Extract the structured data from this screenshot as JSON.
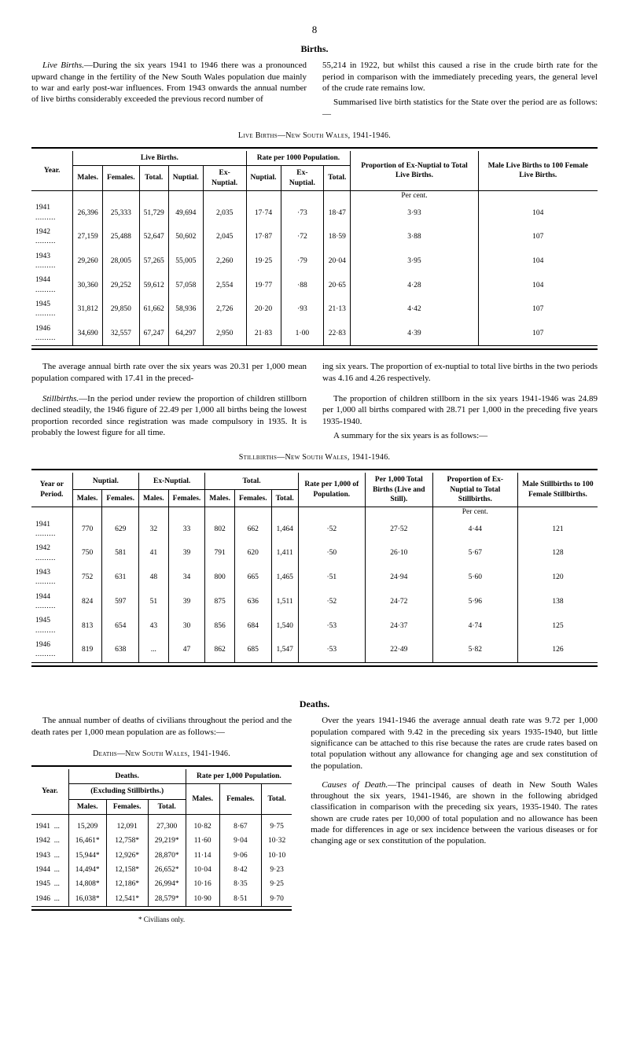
{
  "pageNumber": "8",
  "sections": {
    "births": {
      "heading": "Births.",
      "paraLeft1a": "Live Births.",
      "paraLeft1b": "—During the six years 1941 to 1946 there was a pronounced upward change in the fertility of the New South Wales population due mainly to war and early post-war influences. From 1943 onwards the annual number of live births considerably exceeded the previous record number of",
      "paraRight1": "55,214 in 1922, but whilst this caused a rise in the crude birth rate for the period in comparison with the immediately preceding years, the general level of the crude rate remains low.",
      "paraRight2": "Summarised live birth statistics for the State over the period are as follows:—"
    },
    "table1": {
      "caption": "Live Births—New South Wales, 1941-1946.",
      "groupHeaders": {
        "year": "Year.",
        "liveBirths": "Live Births.",
        "ratePer1000": "Rate per 1000 Population.",
        "proportion": "Proportion of Ex-Nuptial to Total Live Births.",
        "maleLive": "Male Live Births to 100 Female Live Births."
      },
      "subHeaders": {
        "males": "Males.",
        "females": "Females.",
        "total": "Total.",
        "nuptial": "Nuptial.",
        "exNuptial": "Ex-Nuptial.",
        "nuptial2": "Nuptial.",
        "exNuptial2": "Ex-Nuptial.",
        "total2": "Total."
      },
      "perCent": "Per cent.",
      "rows": [
        {
          "year": "1941",
          "males": "26,396",
          "females": "25,333",
          "total": "51,729",
          "nuptial": "49,694",
          "exNuptial": "2,035",
          "rNuptial": "17·74",
          "rExNuptial": "·73",
          "rTotal": "18·47",
          "prop": "3·93",
          "ratio": "104"
        },
        {
          "year": "1942",
          "males": "27,159",
          "females": "25,488",
          "total": "52,647",
          "nuptial": "50,602",
          "exNuptial": "2,045",
          "rNuptial": "17·87",
          "rExNuptial": "·72",
          "rTotal": "18·59",
          "prop": "3·88",
          "ratio": "107"
        },
        {
          "year": "1943",
          "males": "29,260",
          "females": "28,005",
          "total": "57,265",
          "nuptial": "55,005",
          "exNuptial": "2,260",
          "rNuptial": "19·25",
          "rExNuptial": "·79",
          "rTotal": "20·04",
          "prop": "3·95",
          "ratio": "104"
        },
        {
          "year": "1944",
          "males": "30,360",
          "females": "29,252",
          "total": "59,612",
          "nuptial": "57,058",
          "exNuptial": "2,554",
          "rNuptial": "19·77",
          "rExNuptial": "·88",
          "rTotal": "20·65",
          "prop": "4·28",
          "ratio": "104"
        },
        {
          "year": "1945",
          "males": "31,812",
          "females": "29,850",
          "total": "61,662",
          "nuptial": "58,936",
          "exNuptial": "2,726",
          "rNuptial": "20·20",
          "rExNuptial": "·93",
          "rTotal": "21·13",
          "prop": "4·42",
          "ratio": "107"
        },
        {
          "year": "1946",
          "males": "34,690",
          "females": "32,557",
          "total": "67,247",
          "nuptial": "64,297",
          "exNuptial": "2,950",
          "rNuptial": "21·83",
          "rExNuptial": "1·00",
          "rTotal": "22·83",
          "prop": "4·39",
          "ratio": "107"
        }
      ]
    },
    "midText": {
      "leftA": "The average annual birth rate over the six years was 20.31 per 1,000 mean population compared with 17.41 in the preced-",
      "rightA": "ing six years. The proportion of ex-nuptial to total live births in the two periods was 4.16 and 4.26 respectively.",
      "leftB1a": "Stillbirths.",
      "leftB1b": "—In the period under review the proportion of children stillborn declined steadily, the 1946 figure of 22.49 per 1,000 all births being the lowest proportion recorded since registration was made compulsory in 1935. It is probably the lowest figure for all time.",
      "rightB1": "The proportion of children stillborn in the six years 1941-1946 was 24.89 per 1,000 all births compared with 28.71 per 1,000 in the preceding five years 1935-1940.",
      "rightB2": "A summary for the six years is as follows:—"
    },
    "table2": {
      "caption": "Stillbirths—New South Wales, 1941-1946.",
      "groupHeaders": {
        "year": "Year or Period.",
        "nuptial": "Nuptial.",
        "exNuptial": "Ex-Nuptial.",
        "total": "Total.",
        "ratePer1000": "Rate per 1,000 of Population.",
        "per1000Births": "Per 1,000 Total Births (Live and Still).",
        "proportion": "Proportion of Ex-Nuptial to Total Stillbirths.",
        "maleStill": "Male Stillbirths to 100 Female Stillbirths."
      },
      "subHeaders": {
        "males": "Males.",
        "females": "Females.",
        "total": "Total."
      },
      "perCent": "Per cent.",
      "rows": [
        {
          "year": "1941",
          "nM": "770",
          "nF": "629",
          "eM": "32",
          "eF": "33",
          "tM": "802",
          "tF": "662",
          "tT": "1,464",
          "rate": "·52",
          "per1000": "27·52",
          "prop": "4·44",
          "ratio": "121"
        },
        {
          "year": "1942",
          "nM": "750",
          "nF": "581",
          "eM": "41",
          "eF": "39",
          "tM": "791",
          "tF": "620",
          "tT": "1,411",
          "rate": "·50",
          "per1000": "26·10",
          "prop": "5·67",
          "ratio": "128"
        },
        {
          "year": "1943",
          "nM": "752",
          "nF": "631",
          "eM": "48",
          "eF": "34",
          "tM": "800",
          "tF": "665",
          "tT": "1,465",
          "rate": "·51",
          "per1000": "24·94",
          "prop": "5·60",
          "ratio": "120"
        },
        {
          "year": "1944",
          "nM": "824",
          "nF": "597",
          "eM": "51",
          "eF": "39",
          "tM": "875",
          "tF": "636",
          "tT": "1,511",
          "rate": "·52",
          "per1000": "24·72",
          "prop": "5·96",
          "ratio": "138"
        },
        {
          "year": "1945",
          "nM": "813",
          "nF": "654",
          "eM": "43",
          "eF": "30",
          "tM": "856",
          "tF": "684",
          "tT": "1,540",
          "rate": "·53",
          "per1000": "24·37",
          "prop": "4·74",
          "ratio": "125"
        },
        {
          "year": "1946",
          "nM": "819",
          "nF": "638",
          "eM": "...",
          "eF": "47",
          "tM": "862",
          "tF": "685",
          "tT": "1,547",
          "rate": "·53",
          "per1000": "22·49",
          "prop": "5·82",
          "ratio": "126"
        }
      ]
    },
    "deaths": {
      "heading": "Deaths.",
      "leftIntro": "The annual number of deaths of civilians throughout the period and the death rates per 1,000 mean population are as follows:—",
      "tableCaption": "Deaths—New South Wales, 1941-1946.",
      "headers": {
        "year": "Year.",
        "deaths": "Deaths.",
        "exclStill": "(Excluding Stillbirths.)",
        "ratePer1000": "Rate per 1,000 Population.",
        "males": "Males.",
        "females": "Females.",
        "total": "Total."
      },
      "rows": [
        {
          "year": "1941",
          "males": "15,209",
          "females": "12,091",
          "total": "27,300",
          "rM": "10·82",
          "rF": "8·67",
          "rT": "9·75"
        },
        {
          "year": "1942",
          "males": "16,461*",
          "females": "12,758*",
          "total": "29,219*",
          "rM": "11·60",
          "rF": "9·04",
          "rT": "10·32"
        },
        {
          "year": "1943",
          "males": "15,944*",
          "females": "12,926*",
          "total": "28,870*",
          "rM": "11·14",
          "rF": "9·06",
          "rT": "10·10"
        },
        {
          "year": "1944",
          "males": "14,494*",
          "females": "12,158*",
          "total": "26,652*",
          "rM": "10·04",
          "rF": "8·42",
          "rT": "9·23"
        },
        {
          "year": "1945",
          "males": "14,808*",
          "females": "12,186*",
          "total": "26,994*",
          "rM": "10·16",
          "rF": "8·35",
          "rT": "9·25"
        },
        {
          "year": "1946",
          "males": "16,038*",
          "females": "12,541*",
          "total": "28,579*",
          "rM": "10·90",
          "rF": "8·51",
          "rT": "9·70"
        }
      ],
      "footnote": "* Civilians only.",
      "rightPara1": "Over the years 1941-1946 the average annual death rate was 9.72 per 1,000 population compared with 9.42 in the preceding six years 1935-1940, but little significance can be attached to this rise because the rates are crude rates based on total population without any allowance for changing age and sex constitution of the population.",
      "rightPara2a": "Causes of Death.",
      "rightPara2b": "—The principal causes of death in New South Wales throughout the six years, 1941-1946, are shown in the following abridged classification in comparison with the preceding six years, 1935-1940. The rates shown are crude rates per 10,000 of total population and no allowance has been made for differences in age or sex incidence between the various diseases or for changing age or sex constitution of the population."
    }
  }
}
